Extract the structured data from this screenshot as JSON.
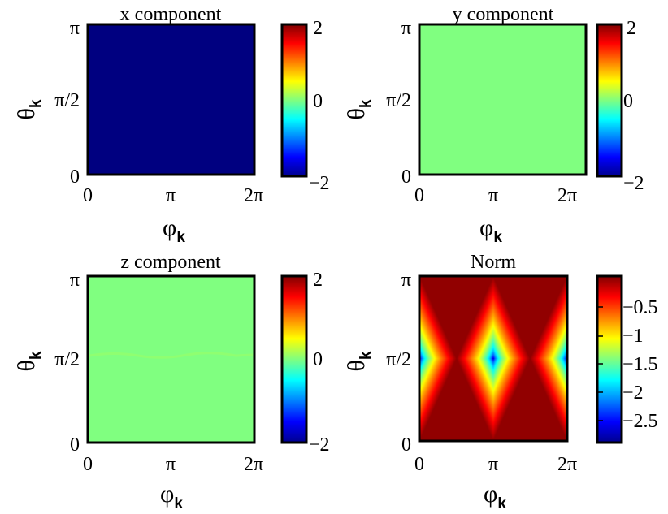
{
  "chart_data": [
    {
      "type": "heatmap",
      "title": "x component",
      "xlabel": "φ_k",
      "ylabel": "θ_k",
      "xticks": [
        "0",
        "π",
        "2π"
      ],
      "yticks": [
        "0",
        "π/2",
        "π"
      ],
      "xlim": [
        0,
        6.2832
      ],
      "ylim": [
        0,
        3.1416
      ],
      "field": "constant",
      "value": -2,
      "colorbar": {
        "colormap": "jet",
        "range": [
          -2,
          2
        ],
        "ticks": [
          2,
          0,
          -2
        ],
        "tick_labels": [
          "2",
          "0",
          "−2"
        ]
      }
    },
    {
      "type": "heatmap",
      "title": "y component",
      "xlabel": "φ_k",
      "ylabel": "θ_k",
      "xticks": [
        "0",
        "π",
        "2π"
      ],
      "yticks": [
        "0",
        "π/2",
        "π"
      ],
      "xlim": [
        0,
        6.2832
      ],
      "ylim": [
        0,
        3.1416
      ],
      "field": "constant",
      "value": 0,
      "colorbar": {
        "colormap": "jet",
        "range": [
          -2,
          2
        ],
        "ticks": [
          2,
          0,
          -2
        ],
        "tick_labels": [
          "2",
          "0",
          "−2"
        ]
      }
    },
    {
      "type": "heatmap",
      "title": "z component",
      "xlabel": "φ_k",
      "ylabel": "θ_k",
      "xticks": [
        "0",
        "π",
        "2π"
      ],
      "yticks": [
        "0",
        "π/2",
        "π"
      ],
      "xlim": [
        0,
        6.2832
      ],
      "ylim": [
        0,
        3.1416
      ],
      "field": "constant",
      "value": 0,
      "colorbar": {
        "colormap": "jet",
        "range": [
          -2,
          2
        ],
        "ticks": [
          2,
          0,
          -2
        ],
        "tick_labels": [
          "2",
          "0",
          "−2"
        ]
      }
    },
    {
      "type": "heatmap",
      "title": "Norm",
      "xlabel": "φ_k",
      "ylabel": "θ_k",
      "xticks": [
        "0",
        "π",
        "2π"
      ],
      "yticks": [
        "0",
        "π/2",
        "π"
      ],
      "xlim": [
        0,
        6.2832
      ],
      "ylim": [
        0,
        3.1416
      ],
      "field": "norm_diamond",
      "min_value": -2.9,
      "max_value": -0.05,
      "minima": [
        [
          0,
          1.5708
        ],
        [
          3.1416,
          1.5708
        ],
        [
          6.2832,
          1.5708
        ]
      ],
      "colorbar": {
        "colormap": "jet",
        "range": [
          -2.9,
          0
        ],
        "ticks": [
          -0.5,
          -1,
          -1.5,
          -2,
          -2.5
        ],
        "tick_labels": [
          "−0.5",
          "−1",
          "−1.5",
          "−2",
          "−2.5"
        ]
      }
    }
  ]
}
